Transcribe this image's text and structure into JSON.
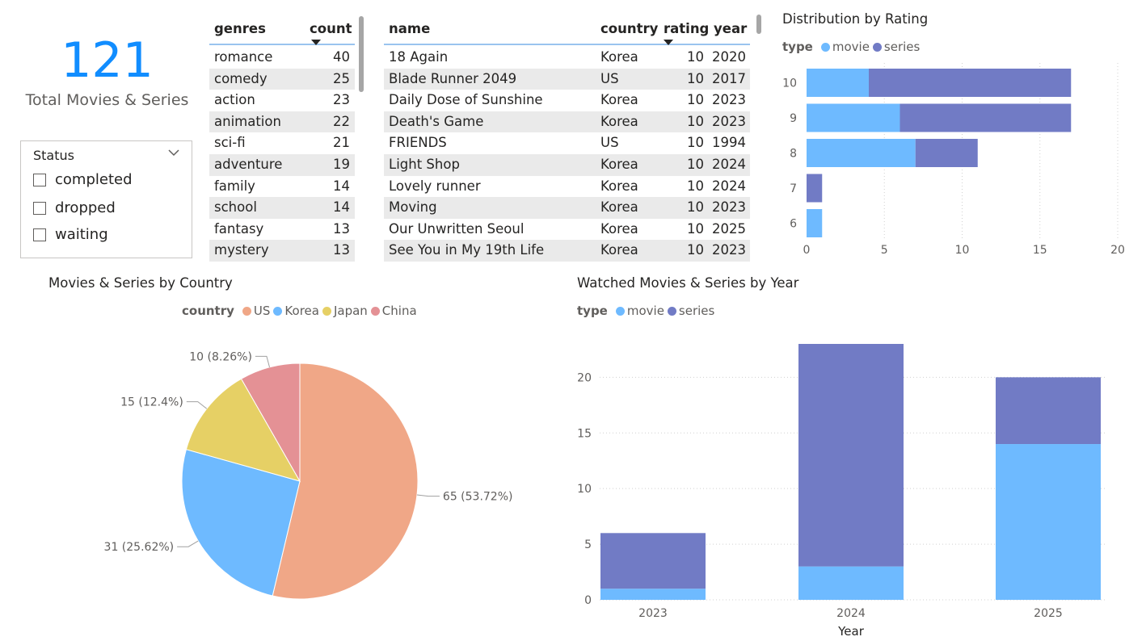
{
  "kpi": {
    "value": "121",
    "label": "Total Movies & Series"
  },
  "slicer": {
    "title": "Status",
    "options": [
      "completed",
      "dropped",
      "waiting"
    ]
  },
  "genres_table": {
    "headers": {
      "genres": "genres",
      "count": "count"
    },
    "rows": [
      {
        "genre": "romance",
        "count": "40"
      },
      {
        "genre": "comedy",
        "count": "25"
      },
      {
        "genre": "action",
        "count": "23"
      },
      {
        "genre": "animation",
        "count": "22"
      },
      {
        "genre": "sci-fi",
        "count": "21"
      },
      {
        "genre": "adventure",
        "count": "19"
      },
      {
        "genre": "family",
        "count": "14"
      },
      {
        "genre": "school",
        "count": "14"
      },
      {
        "genre": "fantasy",
        "count": "13"
      },
      {
        "genre": "mystery",
        "count": "13"
      }
    ]
  },
  "titles_table": {
    "headers": {
      "name": "name",
      "country": "country",
      "rating": "rating",
      "year": "year"
    },
    "rows": [
      {
        "name": "18 Again",
        "country": "Korea",
        "rating": "10",
        "year": "2020"
      },
      {
        "name": "Blade Runner 2049",
        "country": "US",
        "rating": "10",
        "year": "2017"
      },
      {
        "name": "Daily Dose of Sunshine",
        "country": "Korea",
        "rating": "10",
        "year": "2023"
      },
      {
        "name": "Death's Game",
        "country": "Korea",
        "rating": "10",
        "year": "2023"
      },
      {
        "name": "FRIENDS",
        "country": "US",
        "rating": "10",
        "year": "1994"
      },
      {
        "name": "Light Shop",
        "country": "Korea",
        "rating": "10",
        "year": "2024"
      },
      {
        "name": "Lovely runner",
        "country": "Korea",
        "rating": "10",
        "year": "2024"
      },
      {
        "name": "Moving",
        "country": "Korea",
        "rating": "10",
        "year": "2023"
      },
      {
        "name": "Our Unwritten Seoul",
        "country": "Korea",
        "rating": "10",
        "year": "2025"
      },
      {
        "name": "See You in My 19th Life",
        "country": "Korea",
        "rating": "10",
        "year": "2023"
      }
    ]
  },
  "colors": {
    "accent": "#118dff",
    "movie": "#6ebaff",
    "series": "#717bc5",
    "US": "#f0a787",
    "Korea": "#6ebaff",
    "Japan": "#e6d065",
    "China": "#e49195"
  },
  "chart_data": [
    {
      "type": "bar",
      "orientation": "horizontal",
      "stacked": true,
      "title": "Distribution by Rating",
      "legend_title": "type",
      "categories": [
        "10",
        "9",
        "8",
        "7",
        "6"
      ],
      "series": [
        {
          "name": "movie",
          "values": [
            4,
            6,
            7,
            0,
            1
          ]
        },
        {
          "name": "series",
          "values": [
            13,
            11,
            4,
            1,
            0
          ]
        }
      ],
      "xlim": [
        0,
        20
      ],
      "xticks": [
        "0",
        "5",
        "10",
        "15",
        "20"
      ],
      "grid": true,
      "legend_position": "top-left"
    },
    {
      "type": "pie",
      "title": "Movies & Series by Country",
      "legend_title": "country",
      "categories": [
        "US",
        "Korea",
        "Japan",
        "China"
      ],
      "values": [
        65,
        31,
        15,
        10
      ],
      "data_labels": [
        "65 (53.72%)",
        "31 (25.62%)",
        "15 (12.4%)",
        "10 (8.26%)"
      ],
      "legend_position": "top-center"
    },
    {
      "type": "bar",
      "orientation": "vertical",
      "stacked": true,
      "title": "Watched Movies & Series by Year",
      "legend_title": "type",
      "categories": [
        "2023",
        "2024",
        "2025"
      ],
      "series": [
        {
          "name": "movie",
          "values": [
            1,
            3,
            14
          ]
        },
        {
          "name": "series",
          "values": [
            5,
            20,
            6
          ]
        }
      ],
      "xlabel": "Year",
      "ylim": [
        0,
        23
      ],
      "yticks": [
        "0",
        "5",
        "10",
        "15",
        "20"
      ],
      "grid": true,
      "legend_position": "top-left"
    }
  ]
}
